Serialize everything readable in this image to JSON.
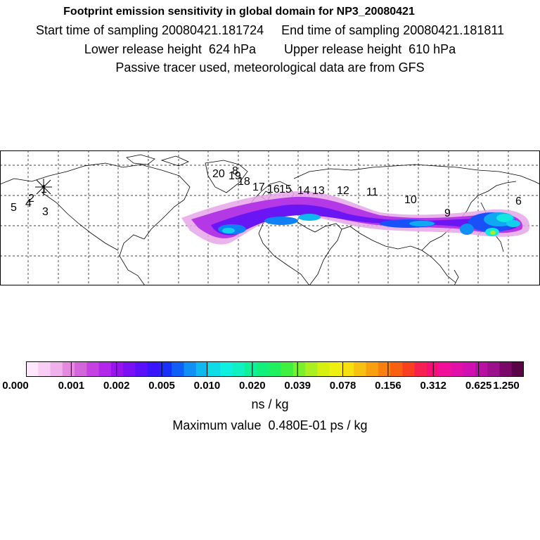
{
  "header": {
    "title": "Footprint emission sensitivity in global domain for NP3_20080421",
    "line1": "Start time of sampling 20080421.181724     End time of sampling 20080421.181811",
    "line2": "Lower release height  624 hPa        Upper release height  610 hPa",
    "line3": "Passive tracer used, meteorological data are from GFS"
  },
  "map": {
    "projection": "global lat-lon",
    "grid": "dashed",
    "trajectory_labels": [
      {
        "label": "1"
      },
      {
        "label": "2"
      },
      {
        "label": "3"
      },
      {
        "label": "4"
      },
      {
        "label": "5"
      },
      {
        "label": "6"
      },
      {
        "label": "9"
      },
      {
        "label": "10"
      },
      {
        "label": "11"
      },
      {
        "label": "12"
      },
      {
        "label": "13"
      },
      {
        "label": "14"
      },
      {
        "label": "15"
      },
      {
        "label": "16"
      },
      {
        "label": "17"
      },
      {
        "label": "18"
      },
      {
        "label": "19"
      },
      {
        "label": "20"
      },
      {
        "label": "8"
      }
    ]
  },
  "colorbar": {
    "ticks": [
      "0.000",
      "0.001",
      "0.002",
      "0.005",
      "0.010",
      "0.020",
      "0.039",
      "0.078",
      "0.156",
      "0.312",
      "0.625",
      "1.250"
    ],
    "colors": [
      "#fde7fb",
      "#f8cef4",
      "#f0b0ec",
      "#e58ae0",
      "#d466dc",
      "#c542e2",
      "#b327ea",
      "#9a14f0",
      "#7c10f4",
      "#5a10f8",
      "#3a14fa",
      "#1830fa",
      "#1060f8",
      "#1090f4",
      "#10b8f0",
      "#10dce8",
      "#10f0e0",
      "#10f0c0",
      "#10f09a",
      "#10f07a",
      "#20f060",
      "#40f040",
      "#78f030",
      "#a8f020",
      "#d8f010",
      "#f0f010",
      "#f8e010",
      "#f8c010",
      "#f8a010",
      "#f88010",
      "#f86010",
      "#f84020",
      "#f82050",
      "#f81078",
      "#f0109a",
      "#e010a8",
      "#d010b0",
      "#b810a0",
      "#9c108c",
      "#7a0868",
      "#5a0448"
    ],
    "unit": "ns / kg",
    "max_value": "Maximum value  0.480E-01 ps / kg"
  }
}
